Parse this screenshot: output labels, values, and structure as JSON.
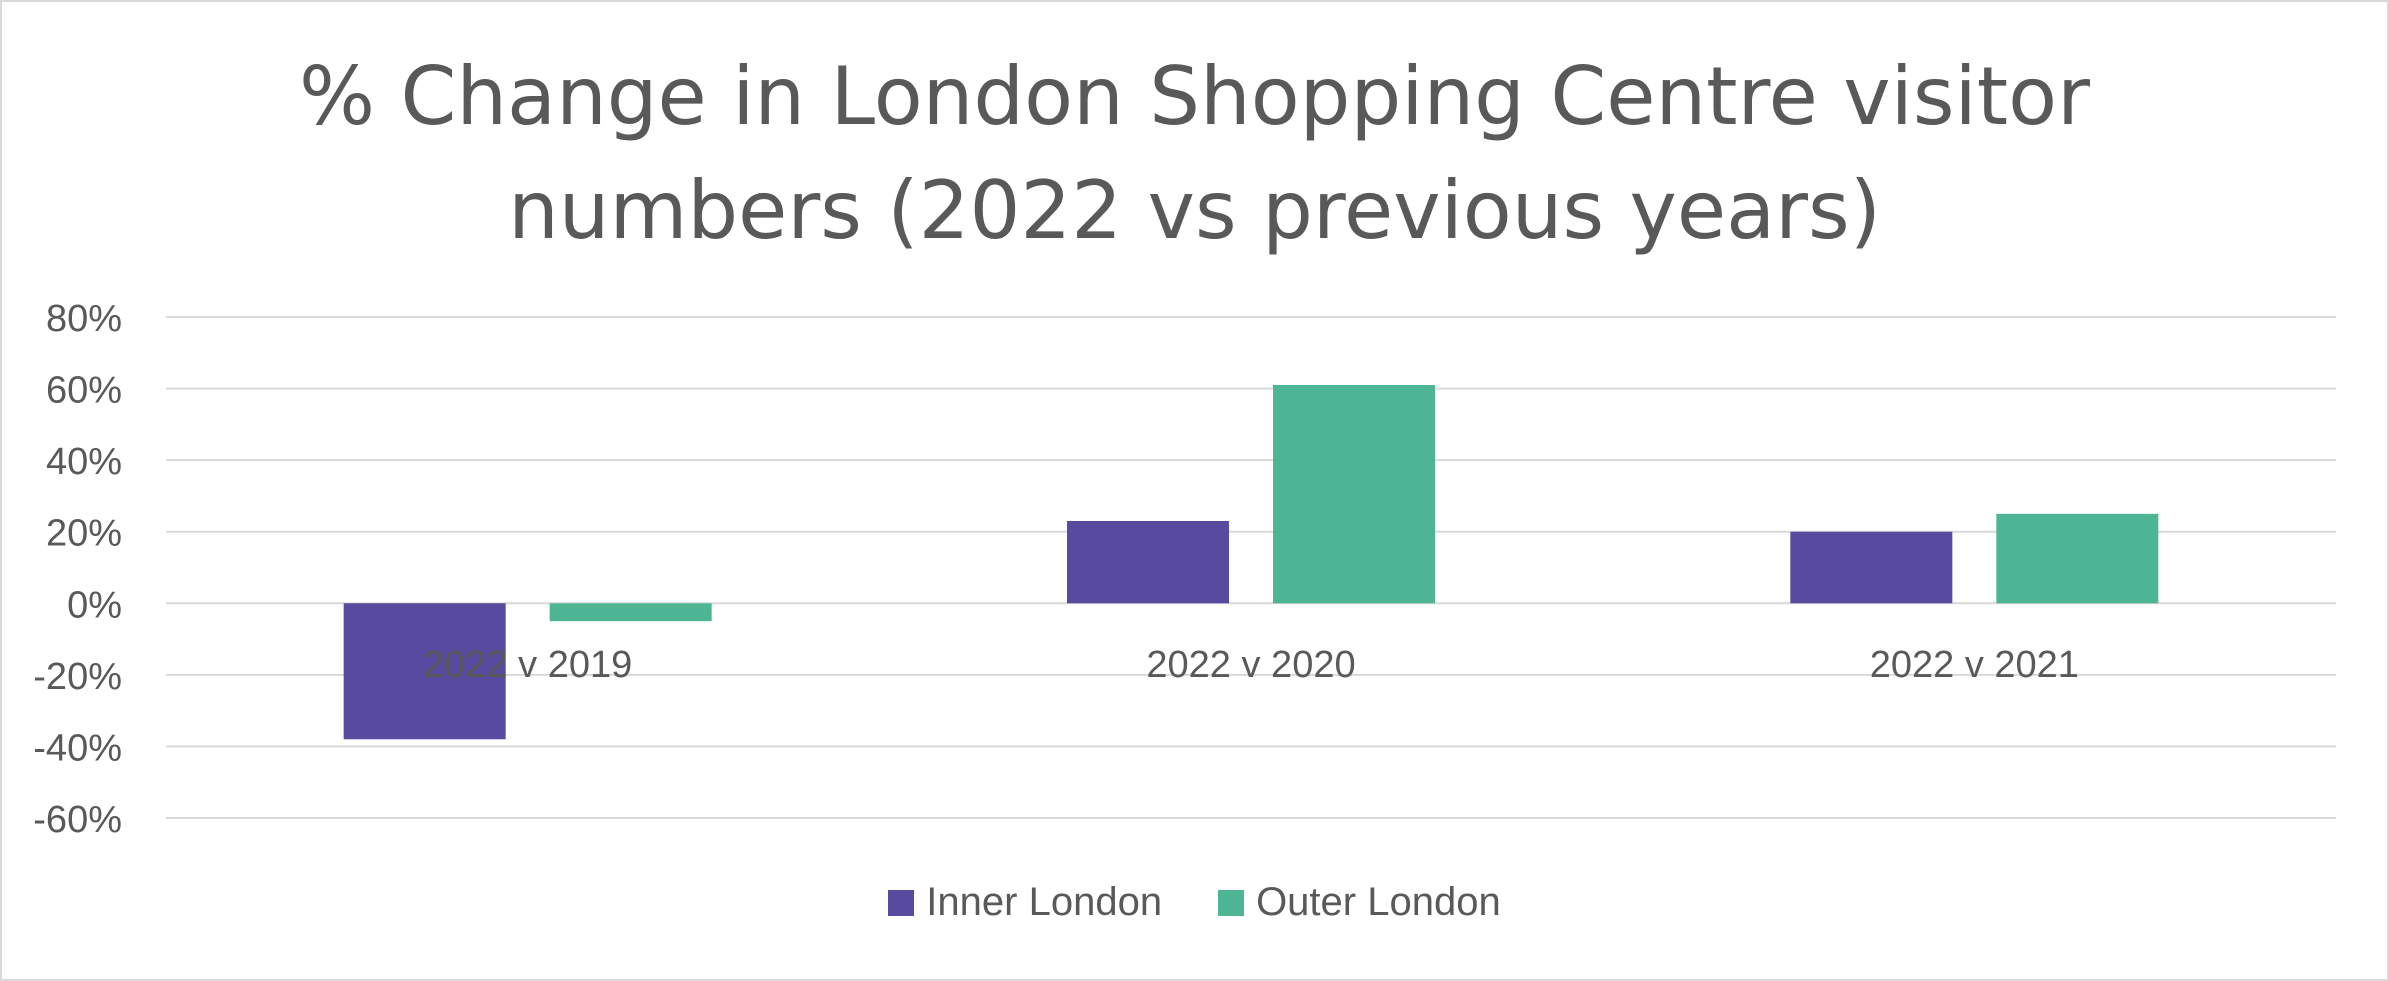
{
  "chart_data": {
    "type": "bar",
    "title_lines": [
      "% Change in London Shopping Centre visitor",
      "numbers (2022 vs previous years)"
    ],
    "categories": [
      "2022 v 2019",
      "2022 v 2020",
      "2022 v 2021"
    ],
    "series": [
      {
        "name": "Inner London",
        "color": "#574a9f",
        "values": [
          -38,
          23,
          20
        ]
      },
      {
        "name": "Outer London",
        "color": "#4db594",
        "values": [
          -5,
          61,
          25
        ]
      }
    ],
    "ylim": [
      -60,
      80
    ],
    "yticks": [
      80,
      60,
      40,
      20,
      0,
      -20,
      -40,
      -60
    ],
    "ytick_labels": [
      "80%",
      "60%",
      "40%",
      "20%",
      "0%",
      "-20%",
      "-40%",
      "-60%"
    ],
    "grid": true,
    "legend_position": "bottom"
  }
}
